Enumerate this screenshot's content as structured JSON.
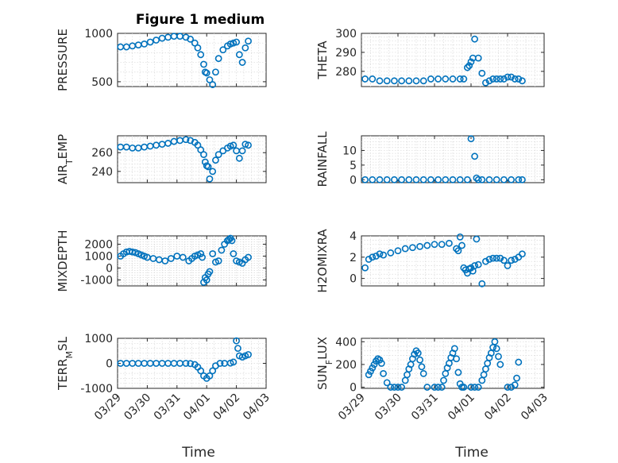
{
  "figure_title": "Figure 1 medium",
  "colors": {
    "marker": "#0072bd",
    "axis": "#262626",
    "grid": "#d9d9d9"
  },
  "chart_data": [
    {
      "type": "scatter",
      "title": "Figure 1 medium",
      "ylabel": "PRESSURE",
      "xlabel": "",
      "xlim": [
        0,
        5
      ],
      "ylim": [
        450,
        1000
      ],
      "yticks": [
        500,
        1000
      ],
      "ytick_labels": [
        "500",
        "1000"
      ],
      "xticks": [
        0,
        1,
        2,
        3,
        4,
        5
      ],
      "xtick_labels": [],
      "grid": true,
      "x": [
        0.1,
        0.3,
        0.5,
        0.7,
        0.9,
        1.1,
        1.3,
        1.5,
        1.7,
        1.9,
        2.1,
        2.3,
        2.45,
        2.6,
        2.7,
        2.8,
        2.9,
        2.95,
        3.0,
        3.1,
        3.2,
        3.3,
        3.4,
        3.55,
        3.7,
        3.8,
        3.9,
        4.0,
        4.1,
        4.2,
        4.3,
        4.4
      ],
      "y": [
        860,
        860,
        870,
        880,
        890,
        910,
        930,
        950,
        960,
        970,
        970,
        960,
        940,
        900,
        850,
        780,
        680,
        600,
        590,
        520,
        470,
        600,
        740,
        830,
        870,
        890,
        900,
        910,
        780,
        700,
        850,
        920
      ]
    },
    {
      "type": "scatter",
      "ylabel": "THETA",
      "xlabel": "",
      "xlim": [
        0,
        5
      ],
      "ylim": [
        272,
        300
      ],
      "yticks": [
        280,
        290,
        300
      ],
      "ytick_labels": [
        "280",
        "290",
        "300"
      ],
      "xticks": [
        0,
        1,
        2,
        3,
        4,
        5
      ],
      "xtick_labels": [],
      "grid": true,
      "x": [
        0.1,
        0.3,
        0.5,
        0.7,
        0.9,
        1.1,
        1.3,
        1.5,
        1.7,
        1.9,
        2.1,
        2.3,
        2.5,
        2.7,
        2.8,
        2.9,
        2.95,
        3.0,
        3.05,
        3.1,
        3.2,
        3.3,
        3.4,
        3.5,
        3.6,
        3.7,
        3.8,
        3.9,
        4.0,
        4.1,
        4.2,
        4.3,
        4.4
      ],
      "y": [
        276,
        276,
        275,
        275,
        275,
        275,
        275,
        275,
        275,
        276,
        276,
        276,
        276,
        276,
        276,
        282,
        283,
        285,
        287,
        297,
        287,
        279,
        274,
        275,
        276,
        276,
        276,
        276,
        277,
        277,
        276,
        276,
        275
      ]
    },
    {
      "type": "scatter",
      "ylabel": "AIR_TEMP",
      "xlabel": "",
      "xlim": [
        0,
        5
      ],
      "ylim": [
        228,
        278
      ],
      "yticks": [
        240,
        260
      ],
      "ytick_labels": [
        "240",
        "260"
      ],
      "xticks": [
        0,
        1,
        2,
        3,
        4,
        5
      ],
      "xtick_labels": [],
      "grid": true,
      "x": [
        0.1,
        0.3,
        0.5,
        0.7,
        0.9,
        1.1,
        1.3,
        1.5,
        1.7,
        1.9,
        2.1,
        2.3,
        2.45,
        2.6,
        2.7,
        2.8,
        2.9,
        2.95,
        3.0,
        3.05,
        3.1,
        3.2,
        3.3,
        3.4,
        3.55,
        3.7,
        3.8,
        3.9,
        4.0,
        4.1,
        4.2,
        4.3,
        4.4
      ],
      "y": [
        266,
        266,
        265,
        265,
        266,
        267,
        268,
        269,
        270,
        272,
        273,
        274,
        273,
        271,
        268,
        263,
        258,
        250,
        246,
        245,
        232,
        240,
        252,
        258,
        262,
        265,
        267,
        268,
        262,
        254,
        262,
        269,
        268
      ]
    },
    {
      "type": "scatter",
      "ylabel": "RAINFALL",
      "xlabel": "",
      "xlim": [
        0,
        5
      ],
      "ylim": [
        -1,
        15
      ],
      "yticks": [
        0,
        5,
        10
      ],
      "ytick_labels": [
        "0",
        "5",
        "10"
      ],
      "xticks": [
        0,
        1,
        2,
        3,
        4,
        5
      ],
      "xtick_labels": [],
      "grid": true,
      "x": [
        0.1,
        0.3,
        0.5,
        0.7,
        0.9,
        1.1,
        1.3,
        1.5,
        1.7,
        1.9,
        2.1,
        2.3,
        2.5,
        2.7,
        2.9,
        3.0,
        3.1,
        3.15,
        3.2,
        3.3,
        3.5,
        3.7,
        3.9,
        4.1,
        4.3,
        4.4
      ],
      "y": [
        0,
        0,
        0,
        0,
        0,
        0,
        0,
        0,
        0,
        0,
        0,
        0,
        0,
        0,
        0,
        14,
        8,
        0.6,
        0,
        0,
        0,
        0,
        0,
        0,
        0,
        0
      ]
    },
    {
      "type": "scatter",
      "ylabel": "MIXDEPTH",
      "xlabel": "",
      "xlim": [
        0,
        5
      ],
      "ylim": [
        -1500,
        2700
      ],
      "yticks": [
        -1000,
        0,
        1000,
        2000
      ],
      "ytick_labels": [
        "-1000",
        "0",
        "1000",
        "2000"
      ],
      "xticks": [
        0,
        1,
        2,
        3,
        4,
        5
      ],
      "xtick_labels": [],
      "grid": true,
      "x": [
        0.1,
        0.2,
        0.3,
        0.4,
        0.5,
        0.6,
        0.7,
        0.8,
        0.9,
        1.0,
        1.2,
        1.4,
        1.6,
        1.8,
        2.0,
        2.2,
        2.4,
        2.5,
        2.6,
        2.7,
        2.8,
        2.85,
        2.9,
        2.95,
        3.0,
        3.05,
        3.1,
        3.2,
        3.3,
        3.4,
        3.5,
        3.6,
        3.7,
        3.75,
        3.8,
        3.85,
        3.9,
        4.0,
        4.1,
        4.2,
        4.3,
        4.4
      ],
      "y": [
        1000,
        1200,
        1350,
        1400,
        1350,
        1300,
        1200,
        1100,
        1000,
        900,
        800,
        700,
        600,
        800,
        1000,
        900,
        600,
        800,
        1000,
        1100,
        1200,
        900,
        -1200,
        -800,
        -1000,
        -500,
        -300,
        1200,
        500,
        600,
        1500,
        2000,
        2300,
        2400,
        2500,
        2300,
        1200,
        600,
        500,
        400,
        700,
        900
      ]
    },
    {
      "type": "scatter",
      "ylabel": "H2OMIXRA",
      "xlabel": "",
      "xlim": [
        0,
        5
      ],
      "ylim": [
        -0.7,
        4
      ],
      "yticks": [
        0,
        2,
        4
      ],
      "ytick_labels": [
        "0",
        "2",
        "4"
      ],
      "xticks": [
        0,
        1,
        2,
        3,
        4,
        5
      ],
      "xtick_labels": [],
      "grid": true,
      "x": [
        0.1,
        0.2,
        0.3,
        0.4,
        0.5,
        0.6,
        0.8,
        1.0,
        1.2,
        1.4,
        1.6,
        1.8,
        2.0,
        2.2,
        2.4,
        2.6,
        2.65,
        2.7,
        2.75,
        2.8,
        2.85,
        2.9,
        2.95,
        3.0,
        3.05,
        3.1,
        3.15,
        3.2,
        3.3,
        3.4,
        3.5,
        3.6,
        3.7,
        3.8,
        3.9,
        4.0,
        4.1,
        4.2,
        4.3,
        4.4
      ],
      "y": [
        1,
        1.8,
        2,
        2.1,
        2.3,
        2.2,
        2.4,
        2.6,
        2.8,
        2.9,
        3.0,
        3.1,
        3.2,
        3.2,
        3.3,
        2.8,
        2.6,
        3.9,
        3.1,
        1.0,
        0.8,
        0.5,
        0.9,
        1.0,
        0.7,
        1.2,
        3.7,
        1.3,
        -0.5,
        1.6,
        1.8,
        1.9,
        1.9,
        1.9,
        1.7,
        1.2,
        1.7,
        1.8,
        2.0,
        2.3
      ]
    },
    {
      "type": "scatter",
      "ylabel": "TERR_MSL",
      "xlabel": "Time",
      "xlim": [
        0,
        5
      ],
      "ylim": [
        -1000,
        1000
      ],
      "yticks": [
        -1000,
        0,
        1000
      ],
      "ytick_labels": [
        "-1000",
        "0",
        "1000"
      ],
      "xticks": [
        0,
        1,
        2,
        3,
        4,
        5
      ],
      "xtick_labels": [
        "03/29",
        "03/30",
        "03/31",
        "04/01",
        "04/02",
        "04/03"
      ],
      "grid": true,
      "x": [
        0.1,
        0.3,
        0.5,
        0.7,
        0.9,
        1.1,
        1.3,
        1.5,
        1.7,
        1.9,
        2.1,
        2.3,
        2.45,
        2.6,
        2.7,
        2.8,
        2.9,
        3.0,
        3.1,
        3.2,
        3.3,
        3.45,
        3.6,
        3.8,
        3.9,
        4.0,
        4.05,
        4.1,
        4.2,
        4.3,
        4.4
      ],
      "y": [
        0,
        0,
        0,
        0,
        0,
        0,
        0,
        0,
        0,
        0,
        0,
        0,
        -10,
        -50,
        -150,
        -300,
        -500,
        -600,
        -500,
        -300,
        -100,
        0,
        0,
        10,
        50,
        900,
        600,
        300,
        250,
        300,
        350
      ]
    },
    {
      "type": "scatter",
      "ylabel": "SUN_FLUX",
      "xlabel": "Time",
      "xlim": [
        0,
        5
      ],
      "ylim": [
        -10,
        430
      ],
      "yticks": [
        0,
        200,
        400
      ],
      "ytick_labels": [
        "0",
        "200",
        "400"
      ],
      "xticks": [
        0,
        1,
        2,
        3,
        4,
        5
      ],
      "xtick_labels": [
        "03/29",
        "03/30",
        "03/31",
        "04/01",
        "04/02",
        "04/03"
      ],
      "grid": true,
      "x": [
        0.2,
        0.25,
        0.3,
        0.35,
        0.4,
        0.45,
        0.5,
        0.55,
        0.6,
        0.7,
        0.8,
        0.9,
        1.0,
        1.1,
        1.2,
        1.25,
        1.3,
        1.35,
        1.4,
        1.45,
        1.5,
        1.55,
        1.6,
        1.65,
        1.7,
        1.8,
        2.0,
        2.1,
        2.2,
        2.25,
        2.3,
        2.35,
        2.4,
        2.45,
        2.5,
        2.55,
        2.6,
        2.65,
        2.7,
        2.75,
        2.8,
        3.0,
        3.1,
        3.2,
        3.3,
        3.35,
        3.4,
        3.45,
        3.5,
        3.55,
        3.6,
        3.65,
        3.7,
        3.75,
        3.8,
        4.0,
        4.1,
        4.2,
        4.25,
        4.3
      ],
      "y": [
        110,
        140,
        170,
        200,
        230,
        250,
        240,
        210,
        120,
        40,
        0,
        0,
        0,
        0,
        60,
        110,
        160,
        200,
        250,
        290,
        320,
        300,
        240,
        180,
        120,
        0,
        0,
        0,
        0,
        60,
        120,
        170,
        210,
        260,
        300,
        340,
        250,
        130,
        30,
        0,
        0,
        0,
        0,
        0,
        60,
        110,
        160,
        210,
        260,
        300,
        350,
        400,
        340,
        270,
        200,
        0,
        0,
        20,
        80,
        220
      ]
    }
  ]
}
